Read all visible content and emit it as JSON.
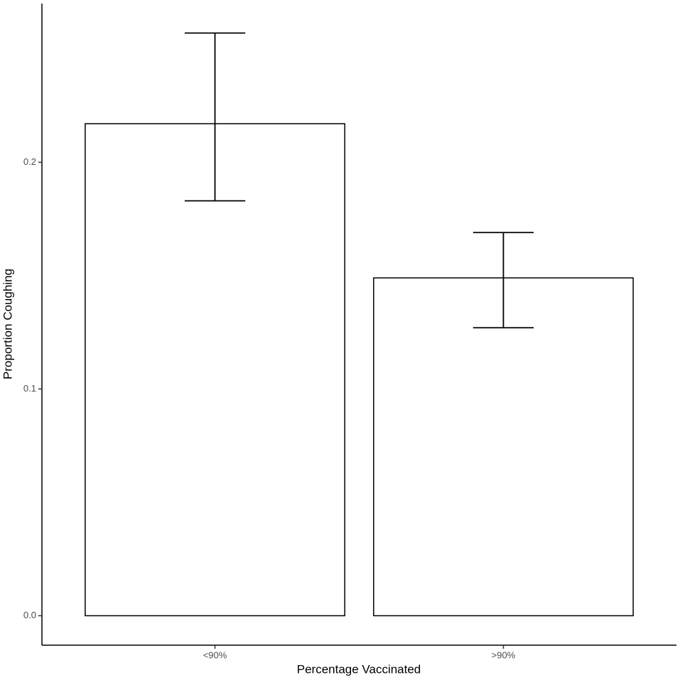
{
  "chart_data": {
    "type": "bar",
    "x_label": "Percentage Vaccinated",
    "y_label": "Proportion Coughing",
    "categories": [
      "<90%",
      ">90%"
    ],
    "values": [
      0.217,
      0.149
    ],
    "error_low": [
      0.183,
      0.127
    ],
    "error_high": [
      0.257,
      0.169
    ],
    "color": "#ffffff",
    "ylim": [
      -0.013,
      0.27
    ],
    "yticks": [
      {
        "value": 0,
        "label": "0.0"
      },
      0.1,
      0.2
    ],
    "grid": false
  }
}
